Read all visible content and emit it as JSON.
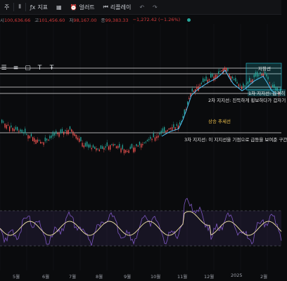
{
  "toolbar": {
    "symbol_suffix": "주",
    "indicators_label": "지표",
    "alert_label": "얼러트",
    "replay_label": "리플레이"
  },
  "ohlc": {
    "open_label": "시",
    "open": "100,636.66",
    "high_label": "고",
    "high": "101,456.60",
    "low_label": "저",
    "low": "98,167.00",
    "close_label": "종",
    "close": "99,383.33",
    "change": "−1,272.42 (−1.26%)"
  },
  "annotations": {
    "resistance": "저항선",
    "support1": "1차 지지선: 급격히",
    "support2": "2차 지지선: 진득하게 횡보하다가 갑자기",
    "trend": "상승 추세선",
    "support3": "3차 지지선: 이 지지선을 기점으로 급등을 보여준 구간"
  },
  "xaxis": [
    "5월",
    "6월",
    "7월",
    "8월",
    "9월",
    "10월",
    "11월",
    "12월",
    "2025",
    "2월"
  ],
  "colors": {
    "up": "#26a69a",
    "down": "#ef5350",
    "rsi": "#7e57c2",
    "rsi_ma": "#f5e6a8",
    "trend": "#4fc3f7",
    "resistance_box": "#26c6da"
  }
}
